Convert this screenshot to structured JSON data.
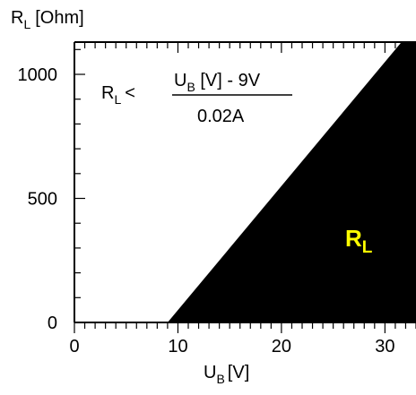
{
  "chart_data": {
    "type": "area",
    "y_axis": {
      "symbol": "R",
      "sub": "L",
      "unit": "[Ohm]"
    },
    "x_axis": {
      "symbol": "U",
      "sub": "B",
      "unit": "[V]"
    },
    "xlim": [
      0,
      33
    ],
    "ylim": [
      0,
      1130
    ],
    "x_ticks": [
      0,
      10,
      20,
      30
    ],
    "y_ticks": [
      0,
      500,
      1000
    ],
    "x_tick_labels": [
      "0",
      "10",
      "20",
      "30"
    ],
    "y_tick_labels": [
      "0",
      "500",
      "1000"
    ],
    "x_minor_step": 1,
    "y_minor_step": 100,
    "series": [
      {
        "x": [
          9,
          33
        ],
        "y": [
          0,
          1200
        ]
      }
    ],
    "fill_color": "#000000",
    "region_label": {
      "symbol": "R",
      "sub": "L",
      "color": "#ffff00"
    },
    "formula": {
      "lhs_symbol": "R",
      "lhs_sub": "L",
      "relation": "<",
      "numerator_symbol": "U",
      "numerator_sub": "B",
      "numerator_rest": " [V] - 9V",
      "denominator": "0.02A"
    },
    "grid": false
  }
}
